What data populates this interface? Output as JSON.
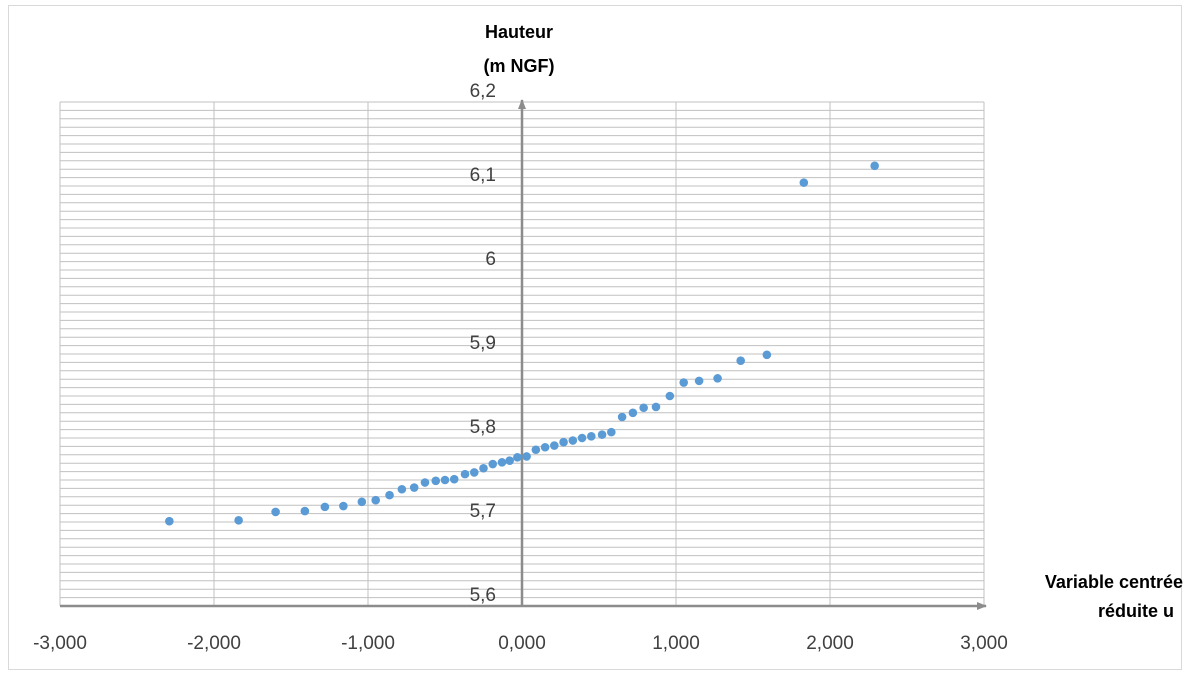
{
  "chart_data": {
    "type": "scatter",
    "title": "",
    "ylabel_lines": [
      "Hauteur",
      "(m NGF)"
    ],
    "xlabel_lines": [
      "Variable centrée",
      "réduite u"
    ],
    "xlim": [
      -3,
      3
    ],
    "ylim": [
      5.6,
      6.2
    ],
    "x_tick_values": [
      -3,
      -2,
      -1,
      0,
      1,
      2,
      3
    ],
    "x_tick_labels": [
      "-3,000",
      "-2,000",
      "-1,000",
      "0,000",
      "1,000",
      "2,000",
      "3,000"
    ],
    "y_tick_values": [
      5.6,
      5.7,
      5.8,
      5.9,
      6.0,
      6.1,
      6.2
    ],
    "y_tick_labels": [
      "5,6",
      "5,7",
      "5,8",
      "5,9",
      "6",
      "6,1",
      "6,2"
    ],
    "major_grid_x": true,
    "minor_grid_y_step": 0.01,
    "axes_cross_at": [
      0,
      5.6
    ],
    "colors": {
      "points": "#5b9bd5",
      "grid": "#c0c0c0",
      "axis": "#8c8c8c"
    },
    "series": [
      {
        "x": [
          -2.29,
          -1.84,
          -1.6,
          -1.41,
          -1.28,
          -1.16,
          -1.04,
          -0.95,
          -0.86,
          -0.78,
          -0.7,
          -0.63,
          -0.56,
          -0.5,
          -0.44,
          -0.37,
          -0.31,
          -0.25,
          -0.19,
          -0.13,
          -0.08,
          -0.03,
          0.03,
          0.09,
          0.15,
          0.21,
          0.27,
          0.33,
          0.39,
          0.45,
          0.52,
          0.58,
          0.65,
          0.72,
          0.79,
          0.87,
          0.96,
          1.05,
          1.15,
          1.27,
          1.42,
          1.59,
          1.83,
          2.29
        ],
        "y": [
          5.701,
          5.702,
          5.712,
          5.713,
          5.718,
          5.719,
          5.724,
          5.726,
          5.732,
          5.739,
          5.741,
          5.747,
          5.749,
          5.75,
          5.751,
          5.757,
          5.759,
          5.764,
          5.769,
          5.771,
          5.773,
          5.777,
          5.778,
          5.786,
          5.789,
          5.791,
          5.795,
          5.797,
          5.8,
          5.802,
          5.804,
          5.807,
          5.825,
          5.83,
          5.836,
          5.837,
          5.85,
          5.866,
          5.868,
          5.871,
          5.892,
          5.899,
          6.104,
          6.124
        ]
      }
    ]
  }
}
